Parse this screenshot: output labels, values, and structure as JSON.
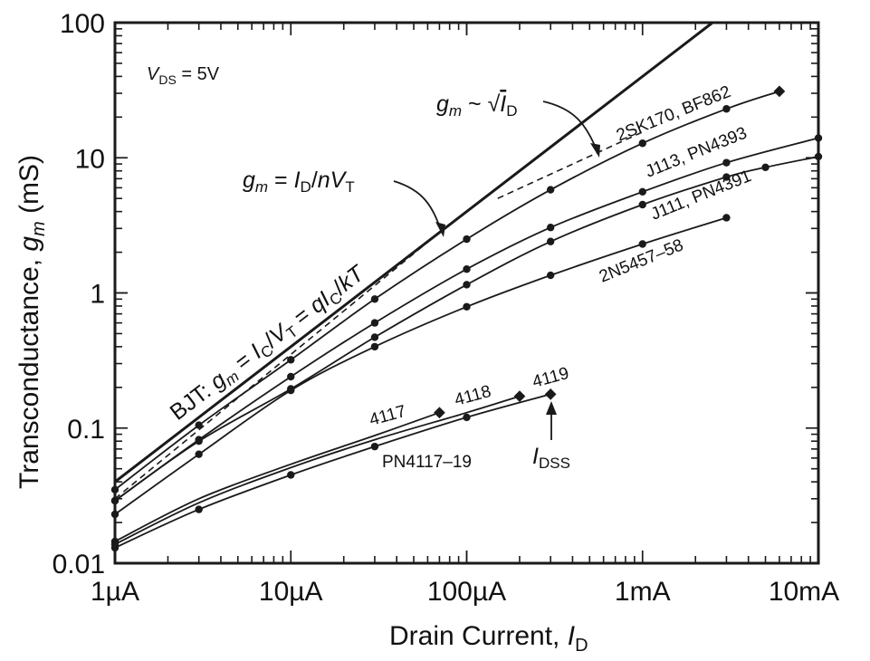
{
  "chart_data": {
    "type": "line",
    "scale": {
      "x": "log",
      "y": "log"
    },
    "xlabel": "Drain Current, I_D",
    "ylabel": "Transconductance, g_m (mS)",
    "xlim": [
      1,
      10000
    ],
    "ylim": [
      0.01,
      100
    ],
    "x_unit": "µA",
    "y_unit": "mS",
    "x_ticks": [
      {
        "value": 1,
        "label": "1µA"
      },
      {
        "value": 10,
        "label": "10µA"
      },
      {
        "value": 100,
        "label": "100µA"
      },
      {
        "value": 1000,
        "label": "1mA"
      },
      {
        "value": 10000,
        "label": "10mA"
      }
    ],
    "y_ticks": [
      {
        "value": 0.01,
        "label": "0.01"
      },
      {
        "value": 0.1,
        "label": "0.1"
      },
      {
        "value": 1,
        "label": "1"
      },
      {
        "value": 10,
        "label": "10"
      },
      {
        "value": 100,
        "label": "100"
      }
    ],
    "condition": "V_DS = 5V",
    "series": [
      {
        "name": "BJT: gm = Ic/VT = qIc/kT",
        "kind": "bjt",
        "x": [
          1,
          2500
        ],
        "y": [
          0.04,
          100
        ]
      },
      {
        "name": "gm = ID/nVT",
        "kind": "dashed",
        "x": [
          1,
          70
        ],
        "y": [
          0.03,
          2.8
        ]
      },
      {
        "name": "gm ~ √ID",
        "kind": "dashed",
        "x": [
          150,
          1000
        ],
        "y": [
          5,
          15.5
        ]
      },
      {
        "name": "2SK170, BF862",
        "kind": "jfet",
        "x": [
          1,
          3,
          10,
          30,
          100,
          300,
          1000,
          3000,
          6000
        ],
        "y": [
          0.035,
          0.105,
          0.32,
          0.9,
          2.5,
          5.8,
          12.8,
          23,
          31
        ]
      },
      {
        "name": "J113, PN4393",
        "kind": "jfet",
        "x": [
          1,
          3,
          10,
          30,
          100,
          300,
          1000,
          3000,
          10000
        ],
        "y": [
          0.029,
          0.082,
          0.24,
          0.6,
          1.5,
          3.05,
          5.6,
          9.2,
          14
        ]
      },
      {
        "name": "J111, PN4391",
        "kind": "jfet",
        "x": [
          1,
          3,
          10,
          30,
          100,
          300,
          1000,
          3000,
          5000,
          10000
        ],
        "y": [
          0.029,
          0.08,
          0.195,
          0.47,
          1.15,
          2.4,
          4.5,
          7.2,
          8.5,
          10.2
        ]
      },
      {
        "name": "2N5457–58",
        "kind": "jfet",
        "x": [
          1,
          3,
          10,
          30,
          100,
          300,
          1000,
          3000
        ],
        "y": [
          0.023,
          0.064,
          0.19,
          0.4,
          0.79,
          1.35,
          2.3,
          3.6
        ]
      },
      {
        "name": "4117",
        "kind": "jfet",
        "x": [
          1,
          3,
          10,
          30,
          70
        ],
        "y": [
          0.0145,
          0.03,
          0.054,
          0.088,
          0.13
        ]
      },
      {
        "name": "4118",
        "kind": "jfet",
        "x": [
          1,
          3,
          10,
          30,
          100,
          200
        ],
        "y": [
          0.0138,
          0.028,
          0.051,
          0.082,
          0.13,
          0.172
        ]
      },
      {
        "name": "4119 / PN4117–19",
        "kind": "jfet",
        "x": [
          1,
          3,
          10,
          30,
          100,
          300
        ],
        "y": [
          0.013,
          0.025,
          0.045,
          0.073,
          0.12,
          0.178
        ]
      }
    ],
    "idss_points": [
      {
        "series": "2SK170, BF862",
        "x": 6000,
        "y": 31
      },
      {
        "series": "4117",
        "x": 70,
        "y": 0.13
      },
      {
        "series": "4118",
        "x": 200,
        "y": 0.172
      },
      {
        "series": "4119 / PN4117–19",
        "x": 300,
        "y": 0.178
      }
    ],
    "labels": {
      "vds": {
        "v": "V",
        "sub": "DS",
        "rest": " = 5V"
      },
      "bjt": "BJT: gm = Ic/VT = qIc/kT",
      "gm_nvt": "gm = ID/nVT",
      "gm_sqrt": "gm ~ √ID",
      "c2sk170": "2SK170, BF862",
      "j113": "J113, PN4393",
      "j111": "J111, PN4391",
      "n5457": "2N5457–58",
      "l4117": "4117",
      "l4118": "4118",
      "l4119": "4119",
      "pn4117": "PN4117–19",
      "idss": {
        "i": "I",
        "sub": "DSS"
      }
    },
    "axis_titles": {
      "x_main": "Drain Current, ",
      "x_var": "I",
      "x_sub": "D",
      "y_main": "Transconductance, ",
      "y_var": "g",
      "y_sub": "m",
      "y_unit": "  (mS)"
    }
  }
}
